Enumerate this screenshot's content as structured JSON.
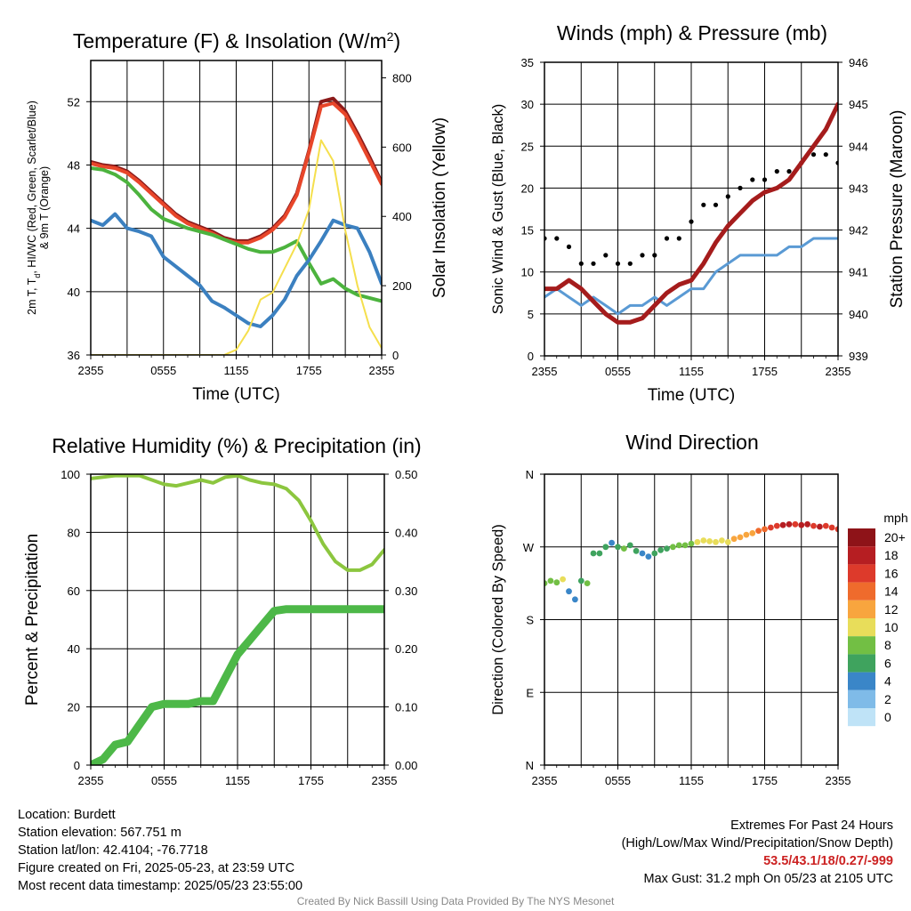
{
  "chart_data": [
    {
      "type": "line",
      "title": "Temperature (F) & Insolation (W/m",
      "title_sup": "2",
      "title_close": ")",
      "xlabel": "Time (UTC)",
      "ylabel": "2m T, Td, HI/WC (Red, Green, Scarlet/Blue) & 9m T (Orange)",
      "ylabel_line1": "2m T, T",
      "ylabel_sub": "d",
      "ylabel_line1b": ", HI/WC (Red, Green, Scarlet/Blue)",
      "ylabel_line2": "& 9m T (Orange)",
      "y2label": "Solar Insolation (Yellow)",
      "x_ticks": [
        "2355",
        "0555",
        "1155",
        "1755",
        "2355"
      ],
      "ylim": [
        36,
        54.6
      ],
      "y_ticks": [
        "36",
        "40",
        "44",
        "48",
        "52"
      ],
      "y2lim": [
        0,
        850
      ],
      "y2_ticks": [
        "0",
        "200",
        "400",
        "600",
        "800"
      ],
      "series": [
        {
          "color": "#8b1a1a",
          "hours": [
            0,
            1,
            2,
            3,
            4,
            5,
            6,
            7,
            8,
            9,
            10,
            11,
            12,
            13,
            14,
            15,
            16,
            17,
            18,
            19,
            20,
            21,
            22,
            23,
            24
          ],
          "values": [
            48.2,
            48.0,
            47.9,
            47.6,
            47.0,
            46.3,
            45.6,
            44.9,
            44.4,
            44.1,
            43.8,
            43.4,
            43.2,
            43.2,
            43.5,
            44.0,
            44.8,
            46.2,
            48.9,
            52.0,
            52.2,
            51.4,
            50.0,
            48.5,
            46.9
          ]
        },
        {
          "color": "#e8462a",
          "hours": [
            0,
            1,
            2,
            3,
            4,
            5,
            6,
            7,
            8,
            9,
            10,
            11,
            12,
            13,
            14,
            15,
            16,
            17,
            18,
            19,
            20,
            21,
            22,
            23,
            24
          ],
          "values": [
            48.1,
            47.9,
            47.8,
            47.5,
            46.9,
            46.2,
            45.5,
            44.8,
            44.3,
            44.0,
            43.7,
            43.3,
            43.1,
            43.1,
            43.4,
            43.9,
            44.7,
            46.1,
            48.8,
            51.7,
            51.9,
            51.2,
            49.8,
            48.3,
            46.8
          ]
        },
        {
          "color": "#4cb33e",
          "hours": [
            0,
            1,
            2,
            3,
            4,
            5,
            6,
            7,
            8,
            9,
            10,
            11,
            12,
            13,
            14,
            15,
            16,
            17,
            18,
            19,
            20,
            21,
            22,
            23,
            24
          ],
          "values": [
            47.8,
            47.7,
            47.4,
            46.9,
            46.1,
            45.2,
            44.6,
            44.3,
            44.0,
            43.8,
            43.6,
            43.3,
            43.0,
            42.7,
            42.5,
            42.5,
            42.8,
            43.2,
            41.8,
            40.5,
            40.8,
            40.2,
            39.8,
            39.6,
            39.4
          ]
        },
        {
          "color": "#3b80c0",
          "hours": [
            0,
            1,
            2,
            3,
            4,
            5,
            6,
            7,
            8,
            9,
            10,
            11,
            12,
            13,
            14,
            15,
            16,
            17,
            18,
            19,
            20,
            21,
            22,
            23,
            24
          ],
          "values": [
            44.5,
            44.2,
            44.9,
            44.0,
            43.8,
            43.5,
            42.2,
            41.6,
            41.0,
            40.4,
            39.4,
            39.0,
            38.5,
            38.0,
            37.8,
            38.5,
            39.5,
            41.0,
            42.0,
            43.2,
            44.5,
            44.2,
            44.0,
            42.5,
            40.5
          ]
        },
        {
          "color": "#f5df4d",
          "axis": "y2",
          "hours": [
            0,
            1,
            2,
            3,
            4,
            5,
            6,
            7,
            8,
            9,
            10,
            11,
            12,
            13,
            14,
            15,
            16,
            17,
            18,
            19,
            20,
            21,
            22,
            23,
            24
          ],
          "values": [
            0,
            0,
            0,
            0,
            0,
            0,
            0,
            0,
            0,
            0,
            0,
            0,
            15,
            70,
            160,
            180,
            250,
            320,
            420,
            620,
            560,
            360,
            200,
            80,
            20
          ]
        }
      ]
    },
    {
      "type": "scatter",
      "title": "Winds (mph) & Pressure (mb)",
      "xlabel": "Time (UTC)",
      "ylabel": "Sonic Wind & Gust (Blue, Black)",
      "y2label": "Station Pressure (Maroon)",
      "x_ticks": [
        "2355",
        "0555",
        "1155",
        "1755",
        "2355"
      ],
      "ylim": [
        0,
        35
      ],
      "y_ticks": [
        "0",
        "5",
        "10",
        "15",
        "20",
        "25",
        "30",
        "35"
      ],
      "y2lim": [
        939,
        946
      ],
      "y2_ticks": [
        "939",
        "940",
        "941",
        "942",
        "943",
        "944",
        "945",
        "946"
      ],
      "series": [
        {
          "color": "#5a9ad4",
          "hours": [
            0,
            1,
            2,
            3,
            4,
            5,
            6,
            7,
            8,
            9,
            10,
            11,
            12,
            13,
            14,
            15,
            16,
            17,
            18,
            19,
            20,
            21,
            22,
            23,
            24
          ],
          "values": [
            7,
            8,
            7,
            6,
            7,
            6,
            5,
            6,
            6,
            7,
            6,
            7,
            8,
            8,
            10,
            11,
            12,
            12,
            12,
            12,
            13,
            13,
            14,
            14,
            14
          ]
        },
        {
          "color": "#000000",
          "style": "dots",
          "hours": [
            0,
            1,
            2,
            3,
            4,
            5,
            6,
            7,
            8,
            9,
            10,
            11,
            12,
            13,
            14,
            15,
            16,
            17,
            18,
            19,
            20,
            21,
            22,
            23,
            24
          ],
          "values": [
            14,
            14,
            13,
            11,
            11,
            12,
            11,
            11,
            12,
            12,
            14,
            14,
            16,
            18,
            18,
            19,
            20,
            21,
            21,
            22,
            22,
            23,
            24,
            24,
            23
          ]
        },
        {
          "color": "#a51c1c",
          "axis": "y2",
          "hours": [
            0,
            1,
            2,
            3,
            4,
            5,
            6,
            7,
            8,
            9,
            10,
            11,
            12,
            13,
            14,
            15,
            16,
            17,
            18,
            19,
            20,
            21,
            22,
            23,
            24
          ],
          "values": [
            940.6,
            940.6,
            940.8,
            940.6,
            940.3,
            940.0,
            939.8,
            939.8,
            939.9,
            940.2,
            940.5,
            940.7,
            940.8,
            941.2,
            941.7,
            942.1,
            942.4,
            942.7,
            942.9,
            943.0,
            943.2,
            943.6,
            944.0,
            944.4,
            945.0
          ]
        }
      ]
    },
    {
      "type": "line",
      "title": "Relative Humidity (%) & Precipitation (in)",
      "xlabel": "",
      "ylabel": "Percent & Precipitation",
      "x_ticks": [
        "2355",
        "0555",
        "1155",
        "1755",
        "2355"
      ],
      "ylim": [
        0,
        100
      ],
      "y_ticks": [
        "0",
        "20",
        "40",
        "60",
        "80",
        "100"
      ],
      "y2lim": [
        0,
        0.5
      ],
      "y2_ticks": [
        "0.00",
        "0.10",
        "0.20",
        "0.30",
        "0.40",
        "0.50"
      ],
      "series": [
        {
          "color": "#8cc63f",
          "hours": [
            0,
            1,
            2,
            3,
            4,
            5,
            6,
            7,
            8,
            9,
            10,
            11,
            12,
            13,
            14,
            15,
            16,
            17,
            18,
            19,
            20,
            21,
            22,
            23,
            24
          ],
          "values": [
            98.5,
            99,
            99.5,
            99.5,
            99.5,
            98,
            96.5,
            96,
            97,
            98,
            97,
            99,
            99.5,
            98,
            97,
            96.5,
            95,
            91,
            84,
            76,
            70,
            67,
            67,
            69,
            74
          ]
        },
        {
          "color": "#4db848",
          "axis": "y2",
          "hours": [
            0,
            1,
            2,
            3,
            4,
            5,
            6,
            7,
            8,
            9,
            10,
            11,
            12,
            13,
            14,
            15,
            16,
            17,
            18,
            19,
            20,
            21,
            22,
            23,
            24
          ],
          "values": [
            0.0,
            0.01,
            0.035,
            0.04,
            0.07,
            0.1,
            0.105,
            0.105,
            0.105,
            0.11,
            0.11,
            0.15,
            0.19,
            0.215,
            0.24,
            0.265,
            0.268,
            0.268,
            0.268,
            0.268,
            0.268,
            0.268,
            0.268,
            0.268,
            0.268
          ]
        }
      ]
    },
    {
      "type": "scatter",
      "title": "Wind Direction",
      "ylabel": "Direction (Colored By Speed)",
      "x_ticks": [
        "2355",
        "0555",
        "1155",
        "1755",
        "2355"
      ],
      "y_ticks": [
        "N",
        "E",
        "S",
        "W",
        "N"
      ],
      "ylim": [
        0,
        360
      ],
      "colorbar": {
        "title": "mph",
        "labels": [
          "0",
          "2",
          "4",
          "6",
          "8",
          "10",
          "12",
          "14",
          "16",
          "18",
          "20+"
        ],
        "colors": [
          "#bfe3f7",
          "#7fbbe8",
          "#3a86c8",
          "#3fa35e",
          "#72bf44",
          "#e8dd5a",
          "#f8a53e",
          "#ef6b2c",
          "#dd3a2b",
          "#b61e22",
          "#8e1318"
        ]
      },
      "hours": [
        0,
        0.5,
        1,
        1.5,
        2,
        2.5,
        3,
        3.5,
        4,
        4.5,
        5,
        5.5,
        6,
        6.5,
        7,
        7.5,
        8,
        8.5,
        9,
        9.5,
        10,
        10.5,
        11,
        11.5,
        12,
        12.5,
        13,
        13.5,
        14,
        14.5,
        15,
        15.5,
        16,
        16.5,
        17,
        17.5,
        18,
        18.5,
        19,
        19.5,
        20,
        20.5,
        21,
        21.5,
        22,
        22.5,
        23,
        23.5,
        24
      ],
      "directions": [
        225,
        228,
        226,
        230,
        215,
        205,
        228,
        225,
        262,
        262,
        270,
        275,
        270,
        268,
        272,
        265,
        262,
        258,
        262,
        266,
        268,
        270,
        272,
        272,
        274,
        276,
        278,
        277,
        276,
        278,
        276,
        280,
        282,
        285,
        287,
        290,
        292,
        294,
        296,
        297,
        298,
        298,
        297,
        298,
        296,
        295,
        296,
        294,
        292
      ],
      "speeds": [
        8,
        9,
        8,
        10,
        5,
        4,
        7,
        8,
        6,
        7,
        6,
        5,
        7,
        8,
        6,
        7,
        4,
        5,
        6,
        6,
        7,
        8,
        9,
        8,
        9,
        10,
        11,
        10,
        10,
        11,
        10,
        12,
        12,
        13,
        12,
        14,
        15,
        16,
        17,
        18,
        18,
        17,
        18,
        18,
        17,
        18,
        16,
        17,
        16
      ]
    }
  ],
  "info": {
    "location": "Location: Burdett",
    "elevation": "Station elevation: 567.751 m",
    "latlon": "Station lat/lon: 42.4104; -76.7718",
    "created": "Figure created on Fri, 2025-05-23, at 23:59 UTC",
    "recent": "Most recent data timestamp: 2025/05/23 23:55:00"
  },
  "extremes": {
    "title": "Extremes For Past 24 Hours",
    "subtitle": "(High/Low/Max Wind/Precipitation/Snow Depth)",
    "values": "53.5/43.1/18/0.27/-999",
    "gust": "Max Gust: 31.2 mph On 05/23 at 2105 UTC"
  },
  "credit": "Created By Nick Bassill Using Data Provided By The NYS Mesonet"
}
